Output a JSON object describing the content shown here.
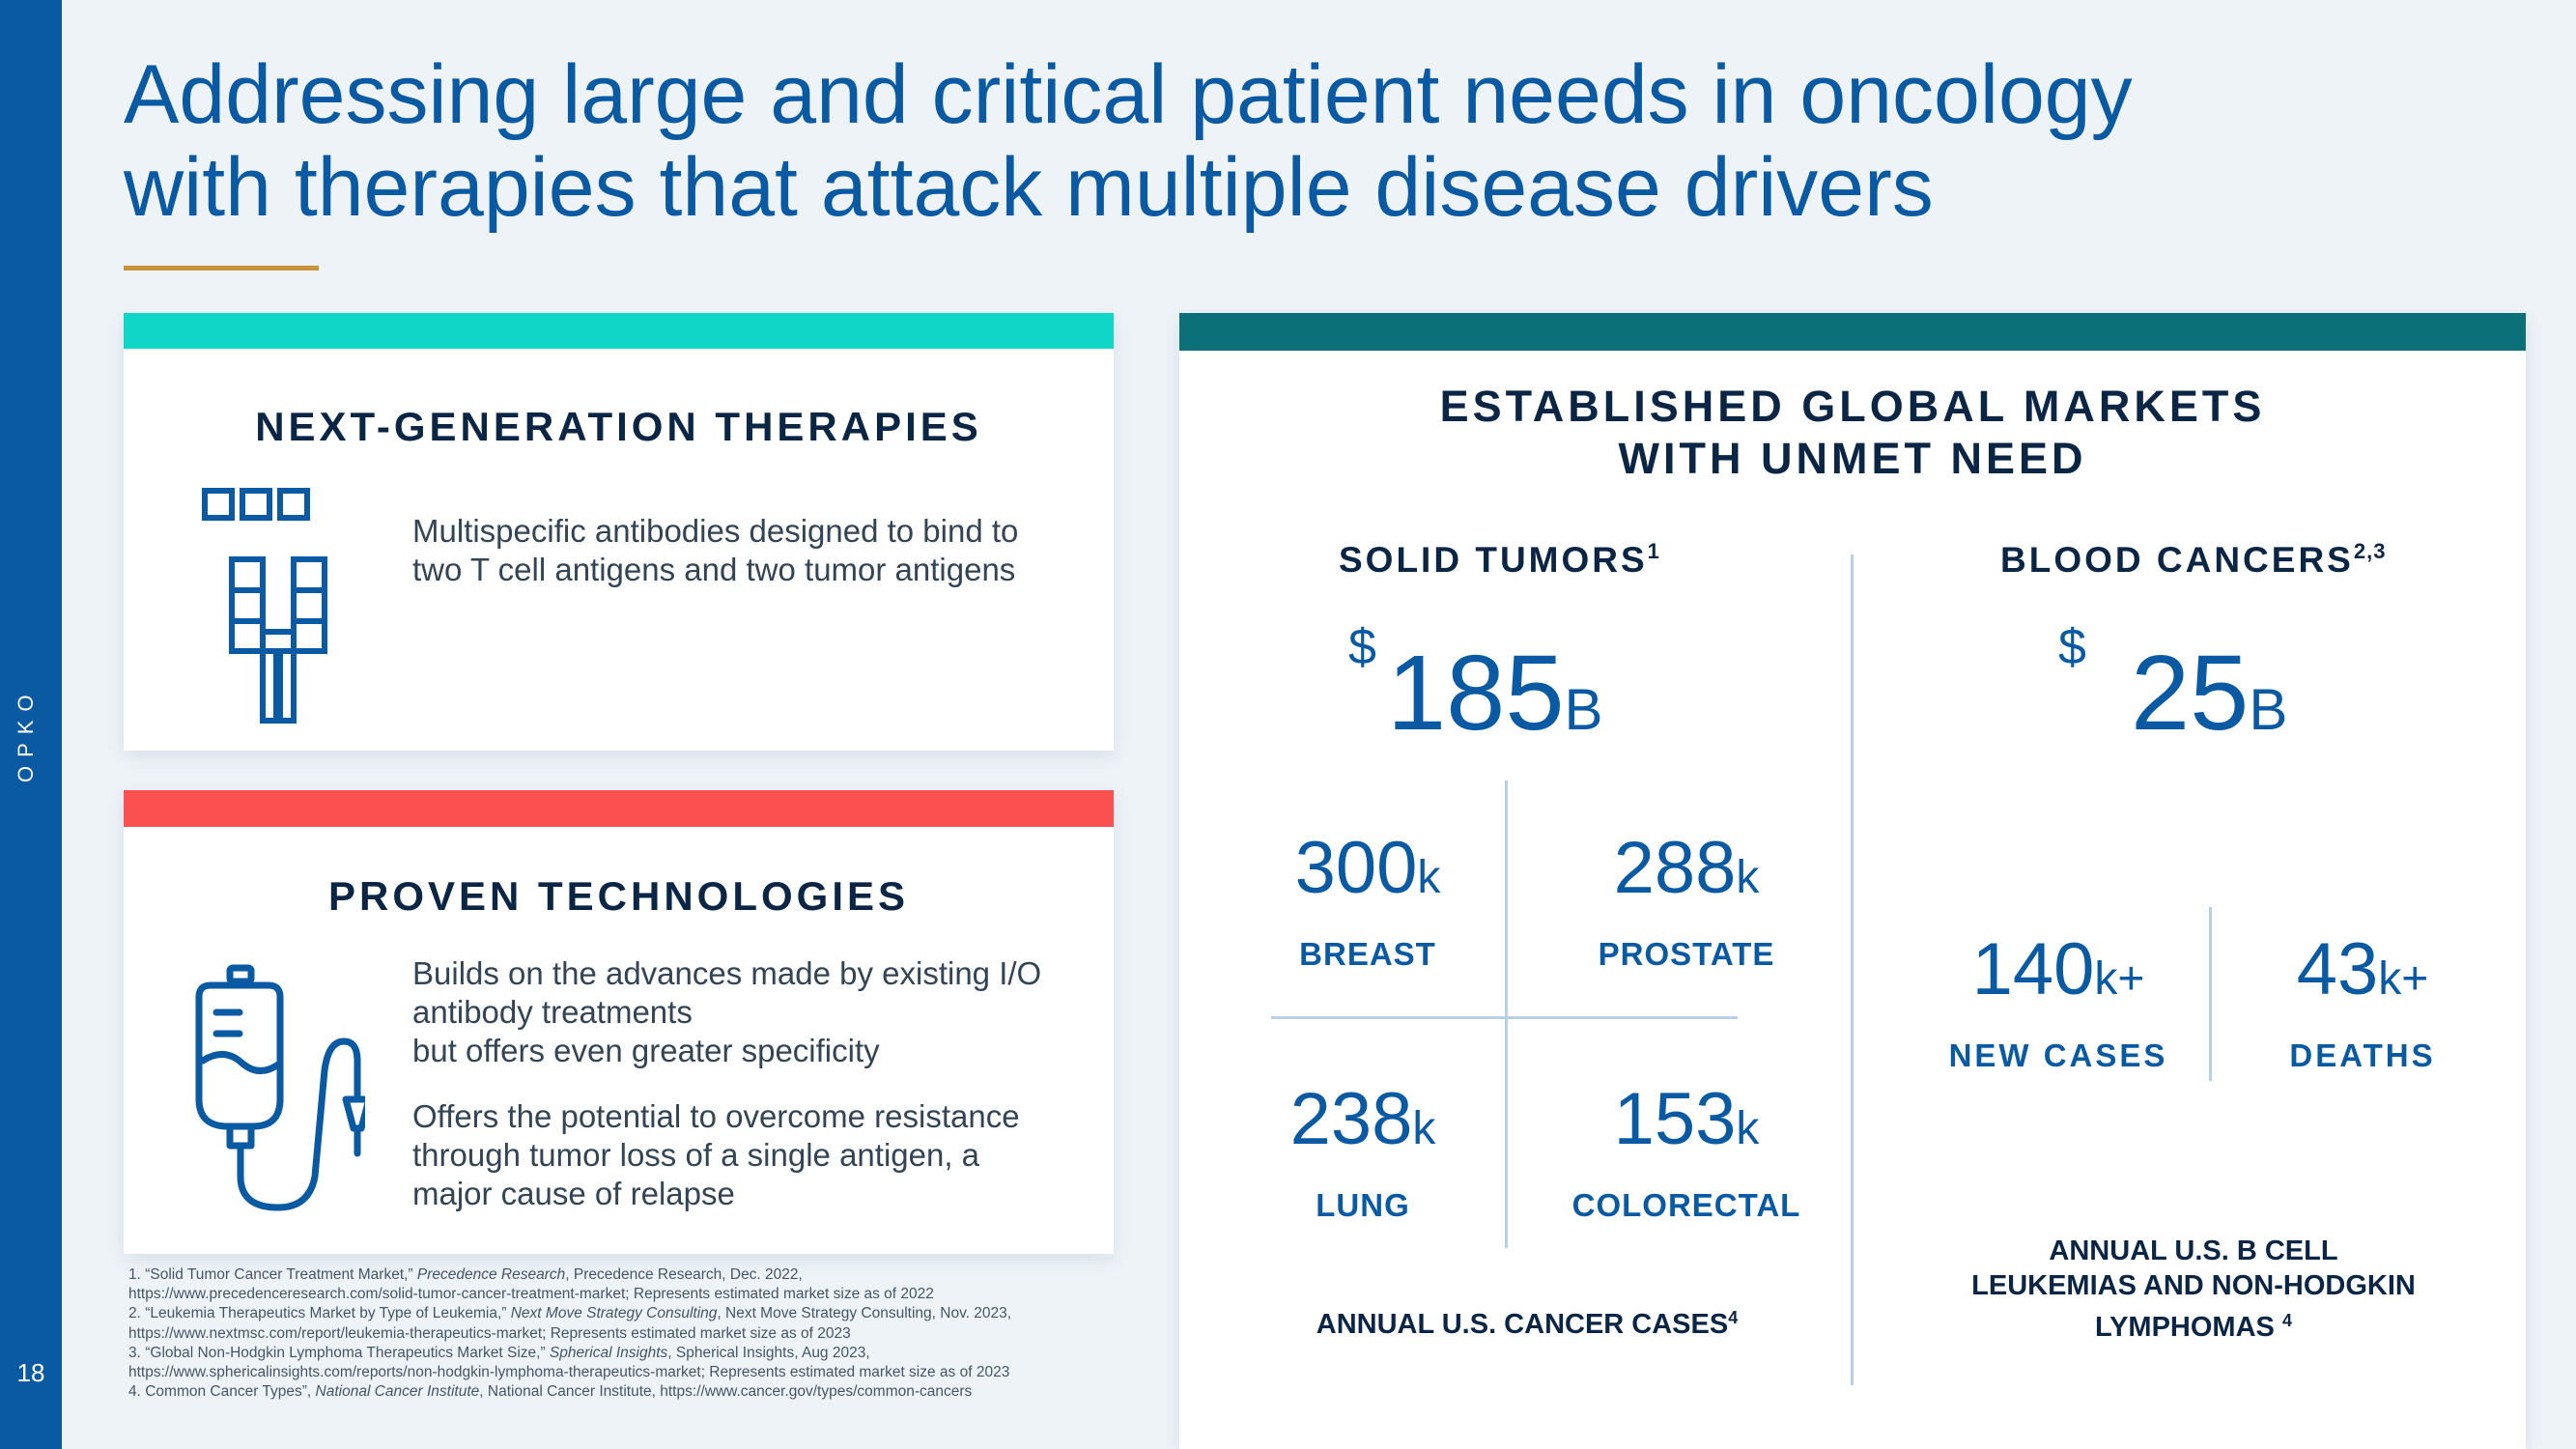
{
  "sidebar": {
    "brand": "OPKO",
    "page_number": "18"
  },
  "title": {
    "line1": "Addressing large and critical patient needs in oncology",
    "line2": "with therapies that attack multiple disease drivers"
  },
  "next_gen": {
    "heading": "NEXT-GENERATION THERAPIES",
    "text_line1": "Multispecific antibodies designed to bind to",
    "text_line2": "two T cell antigens and two tumor antigens",
    "icon": "multispecific-antibody-icon"
  },
  "proven": {
    "heading": "PROVEN TECHNOLOGIES",
    "p1_line1": "Builds on the advances made by existing I/O",
    "p1_line2": "antibody treatments",
    "p1_line3": "but offers even greater specificity",
    "p2_line1": "Offers the potential to overcome resistance",
    "p2_line2": "through tumor loss of a single antigen, a",
    "p2_line3": "major cause of relapse",
    "icon": "iv-drip-bag-icon"
  },
  "markets": {
    "heading_line1": "ESTABLISHED GLOBAL MARKETS",
    "heading_line2": "WITH UNMET NEED",
    "solid": {
      "label": "SOLID TUMORS",
      "sup": "1",
      "currency": "$",
      "value": "185",
      "unit": "B",
      "stats": [
        {
          "value": "300",
          "unit": "k",
          "label": "BREAST"
        },
        {
          "value": "288",
          "unit": "k",
          "label": "PROSTATE"
        },
        {
          "value": "238",
          "unit": "k",
          "label": "LUNG"
        },
        {
          "value": "153",
          "unit": "k",
          "label": "COLORECTAL"
        }
      ],
      "caption": "ANNUAL U.S. CANCER CASES",
      "caption_sup": "4"
    },
    "blood": {
      "label": "BLOOD CANCERS",
      "sup": "2,3",
      "currency": "$",
      "value": "25",
      "unit": "B",
      "stats": [
        {
          "value": "140",
          "unit": "k+",
          "label": "NEW CASES"
        },
        {
          "value": "43",
          "unit": "k+",
          "label": "DEATHS"
        }
      ],
      "caption_line1": "ANNUAL U.S. B CELL",
      "caption_line2": "LEUKEMIAS AND NON-HODGKIN",
      "caption_line3": "LYMPHOMAS",
      "caption_sup": "4"
    }
  },
  "footnotes": [
    {
      "pre": "1. “Solid Tumor Cancer Treatment Market,” ",
      "ital": "Precedence Research",
      "post": ", Precedence Research, Dec. 2022,"
    },
    {
      "pre": "https://www.precedenceresearch.com/solid-tumor-cancer-treatment-market; Represents estimated market size as of 2022",
      "ital": "",
      "post": ""
    },
    {
      "pre": "2. “Leukemia Therapeutics Market by Type of Leukemia,” ",
      "ital": "Next Move Strategy Consulting",
      "post": ", Next Move Strategy Consulting, Nov. 2023,"
    },
    {
      "pre": "https://www.nextmsc.com/report/leukemia-therapeutics-market; Represents estimated market size as of 2023",
      "ital": "",
      "post": ""
    },
    {
      "pre": "3. “Global Non-Hodgkin Lymphoma Therapeutics Market Size,” ",
      "ital": "Spherical Insights",
      "post": ", Spherical Insights, Aug 2023,"
    },
    {
      "pre": "https://www.sphericalinsights.com/reports/non-hodgkin-lymphoma-therapeutics-market; Represents estimated market size as of 2023",
      "ital": "",
      "post": ""
    },
    {
      "pre": "4. Common Cancer Types”, ",
      "ital": "National Cancer Institute",
      "post": ", National Cancer Institute, https://www.cancer.gov/types/common-cancers"
    }
  ],
  "colors": {
    "brand_blue": "#0a5aa3",
    "teal": "#0fd6c6",
    "coral": "#fb5050",
    "dark_teal": "#0b7077",
    "gold": "#c8923e"
  }
}
